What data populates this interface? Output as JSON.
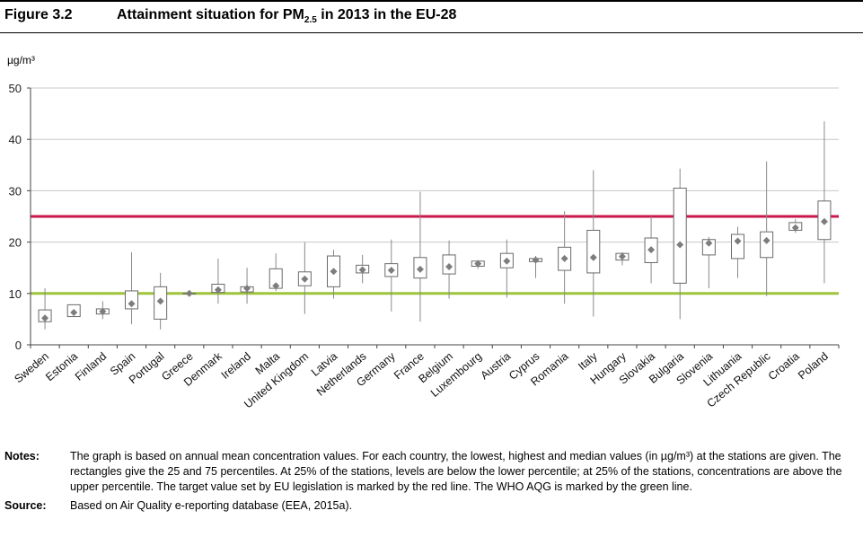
{
  "figure": {
    "label": "Figure 3.2",
    "title_main": "Attainment situation for PM",
    "title_sub": "2.5",
    "title_tail": " in 2013 in the EU-28"
  },
  "chart_data": {
    "type": "boxplot",
    "ylabel": "µg/m³",
    "ylim": [
      0,
      50
    ],
    "yticks": [
      0,
      10,
      20,
      30,
      40,
      50
    ],
    "grid": true,
    "reference_lines": [
      {
        "value": 25,
        "color": "#c8174a"
      },
      {
        "value": 10,
        "color": "#9fc33b"
      }
    ],
    "categories": [
      "Sweden",
      "Estonia",
      "Finland",
      "Spain",
      "Portugal",
      "Greece",
      "Denmark",
      "Ireland",
      "Malta",
      "United Kingdom",
      "Latvia",
      "Netherlands",
      "Germany",
      "France",
      "Belgium",
      "Luxembourg",
      "Austria",
      "Cyprus",
      "Romania",
      "Italy",
      "Hungary",
      "Slovakia",
      "Bulgaria",
      "Slovenia",
      "Lithuania",
      "Czech Republic",
      "Croatia",
      "Poland"
    ],
    "series": [
      {
        "min": 3.0,
        "q1": 4.5,
        "median": 5.2,
        "q3": 6.8,
        "max": 11.0
      },
      {
        "min": 5.5,
        "q1": 5.5,
        "median": 6.3,
        "q3": 7.8,
        "max": 7.8
      },
      {
        "min": 5.0,
        "q1": 6.0,
        "median": 6.5,
        "q3": 7.0,
        "max": 8.5
      },
      {
        "min": 4.0,
        "q1": 7.0,
        "median": 8.0,
        "q3": 10.5,
        "max": 18.0
      },
      {
        "min": 3.0,
        "q1": 5.0,
        "median": 8.5,
        "q3": 11.3,
        "max": 14.0
      },
      {
        "min": 10.0,
        "q1": 10.0,
        "median": 10.0,
        "q3": 10.0,
        "max": 10.0
      },
      {
        "min": 8.0,
        "q1": 10.2,
        "median": 10.7,
        "q3": 11.8,
        "max": 16.8
      },
      {
        "min": 8.0,
        "q1": 10.3,
        "median": 11.0,
        "q3": 11.3,
        "max": 15.0
      },
      {
        "min": 10.5,
        "q1": 11.0,
        "median": 11.5,
        "q3": 14.8,
        "max": 17.8
      },
      {
        "min": 6.0,
        "q1": 11.5,
        "median": 12.8,
        "q3": 14.2,
        "max": 20.0
      },
      {
        "min": 9.0,
        "q1": 11.3,
        "median": 14.3,
        "q3": 17.3,
        "max": 18.5
      },
      {
        "min": 12.0,
        "q1": 14.0,
        "median": 14.6,
        "q3": 15.5,
        "max": 17.5
      },
      {
        "min": 6.5,
        "q1": 13.3,
        "median": 14.5,
        "q3": 15.8,
        "max": 20.5
      },
      {
        "min": 4.5,
        "q1": 13.0,
        "median": 14.7,
        "q3": 17.0,
        "max": 29.8
      },
      {
        "min": 9.0,
        "q1": 13.8,
        "median": 15.2,
        "q3": 17.5,
        "max": 20.3
      },
      {
        "min": 14.8,
        "q1": 15.3,
        "median": 15.8,
        "q3": 16.3,
        "max": 16.5
      },
      {
        "min": 9.2,
        "q1": 15.0,
        "median": 16.3,
        "q3": 17.8,
        "max": 20.5
      },
      {
        "min": 13.0,
        "q1": 16.2,
        "median": 16.5,
        "q3": 16.8,
        "max": 17.3
      },
      {
        "min": 8.0,
        "q1": 14.5,
        "median": 16.8,
        "q3": 19.0,
        "max": 26.0
      },
      {
        "min": 5.5,
        "q1": 14.0,
        "median": 17.0,
        "q3": 22.3,
        "max": 34.0
      },
      {
        "min": 15.5,
        "q1": 16.5,
        "median": 17.2,
        "q3": 17.8,
        "max": 18.0
      },
      {
        "min": 12.0,
        "q1": 16.0,
        "median": 18.5,
        "q3": 20.8,
        "max": 25.0
      },
      {
        "min": 5.0,
        "q1": 12.0,
        "median": 19.5,
        "q3": 30.5,
        "max": 34.3
      },
      {
        "min": 11.0,
        "q1": 17.5,
        "median": 19.8,
        "q3": 20.5,
        "max": 21.0
      },
      {
        "min": 13.0,
        "q1": 16.8,
        "median": 20.2,
        "q3": 21.5,
        "max": 23.0
      },
      {
        "min": 9.5,
        "q1": 17.0,
        "median": 20.3,
        "q3": 22.0,
        "max": 35.7
      },
      {
        "min": 21.8,
        "q1": 22.3,
        "median": 22.8,
        "q3": 23.8,
        "max": 24.5
      },
      {
        "min": 12.0,
        "q1": 20.5,
        "median": 24.0,
        "q3": 28.0,
        "max": 43.5
      }
    ]
  },
  "notes": {
    "notes_label": "Notes:",
    "notes_text": "The graph is based on annual mean concentration values. For each country, the lowest, highest and median values (in µg/m³) at the stations are given. The rectangles give the 25 and 75 percentiles. At 25% of the stations, levels are below the lower percentile; at 25% of the stations, concentrations are above the upper percentile. The target value set by EU legislation is marked by the red line. The WHO AQG is marked by the green line.",
    "source_label": "Source:",
    "source_text": "Based on Air Quality e-reporting database (EEA, 2015a)."
  }
}
